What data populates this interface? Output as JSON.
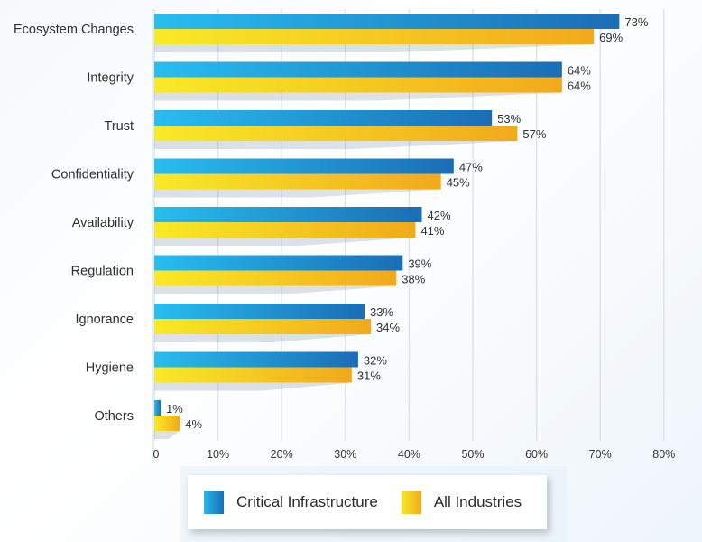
{
  "chart_data": {
    "type": "bar",
    "orientation": "horizontal",
    "title": "",
    "xlabel": "",
    "ylabel": "",
    "categories": [
      "Ecosystem Changes",
      "Integrity",
      "Trust",
      "Confidentiality",
      "Availability",
      "Regulation",
      "Ignorance",
      "Hygiene",
      "Others"
    ],
    "series": [
      {
        "name": "Critical Infrastructure",
        "color": "#1f8fd6",
        "values": [
          73,
          64,
          53,
          47,
          42,
          39,
          33,
          32,
          1
        ]
      },
      {
        "name": "All Industries",
        "color": "#f5c81f",
        "values": [
          69,
          64,
          57,
          45,
          41,
          38,
          34,
          31,
          4
        ]
      }
    ],
    "value_labels": {
      "Critical Infrastructure": [
        "73%",
        "64%",
        "53%",
        "47%",
        "42%",
        "39%",
        "33%",
        "32%",
        "1%"
      ],
      "All Industries": [
        "69%",
        "64%",
        "57%",
        "45%",
        "41%",
        "38%",
        "34%",
        "31%",
        "4%"
      ]
    },
    "xlim": [
      0,
      80
    ],
    "xticks": [
      0,
      10,
      20,
      30,
      40,
      50,
      60,
      70,
      80
    ],
    "xtick_labels": [
      "0",
      "10%",
      "20%",
      "30%",
      "40%",
      "50%",
      "60%",
      "70%",
      "80%"
    ],
    "grid": true,
    "legend_position": "bottom"
  },
  "legend": {
    "items": [
      "Critical Infrastructure",
      "All Industries"
    ]
  }
}
